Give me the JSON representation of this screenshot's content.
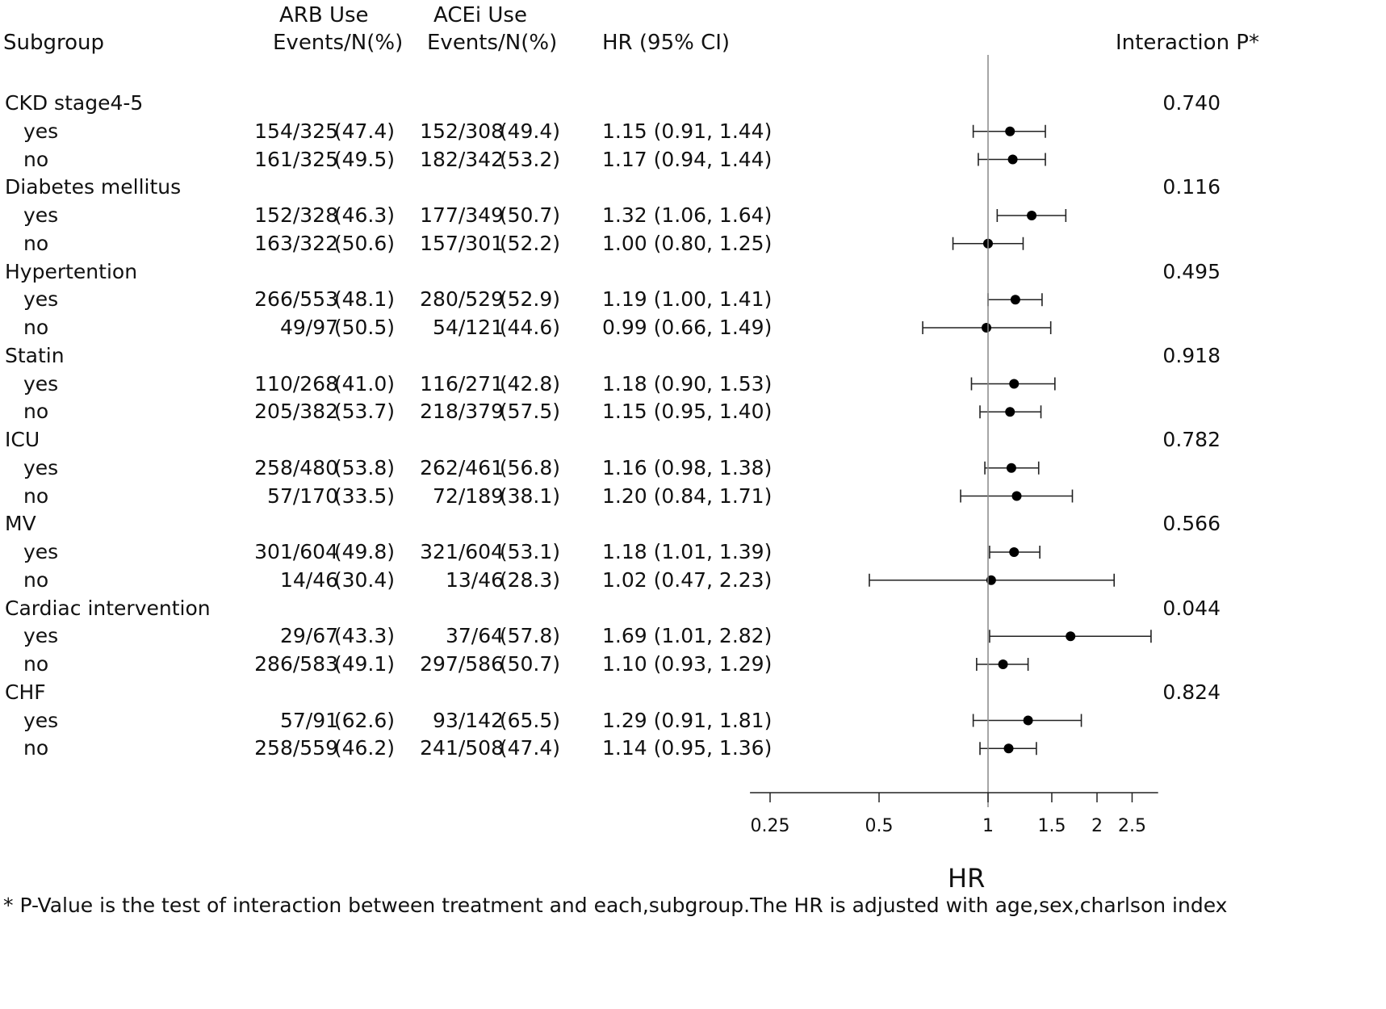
{
  "headers": {
    "subgroup": "Subgroup",
    "arb_line1": "ARB Use",
    "arb_line2": "Events/N(%)",
    "acei_line1": "ACEi Use",
    "acei_line2": "Events/N(%)",
    "hr": "HR (95% CI)",
    "interaction": "Interaction P*"
  },
  "groups": [
    {
      "label": "CKD stage4-5",
      "p": "0.740",
      "rows": [
        {
          "label": "yes",
          "arb_n": "154/325",
          "arb_pct": "(47.4)",
          "acei_n": "152/308",
          "acei_pct": "(49.4)",
          "hr_text": "1.15 (0.91, 1.44)",
          "hr": 1.15,
          "lo": 0.91,
          "hi": 1.44
        },
        {
          "label": "no",
          "arb_n": "161/325",
          "arb_pct": "(49.5)",
          "acei_n": "182/342",
          "acei_pct": "(53.2)",
          "hr_text": "1.17 (0.94, 1.44)",
          "hr": 1.17,
          "lo": 0.94,
          "hi": 1.44
        }
      ]
    },
    {
      "label": "Diabetes mellitus",
      "p": "0.116",
      "rows": [
        {
          "label": "yes",
          "arb_n": "152/328",
          "arb_pct": "(46.3)",
          "acei_n": "177/349",
          "acei_pct": "(50.7)",
          "hr_text": "1.32 (1.06, 1.64)",
          "hr": 1.32,
          "lo": 1.06,
          "hi": 1.64
        },
        {
          "label": "no",
          "arb_n": "163/322",
          "arb_pct": "(50.6)",
          "acei_n": "157/301",
          "acei_pct": "(52.2)",
          "hr_text": "1.00 (0.80, 1.25)",
          "hr": 1.0,
          "lo": 0.8,
          "hi": 1.25
        }
      ]
    },
    {
      "label": "Hypertention",
      "p": "0.495",
      "rows": [
        {
          "label": "yes",
          "arb_n": "266/553",
          "arb_pct": "(48.1)",
          "acei_n": "280/529",
          "acei_pct": "(52.9)",
          "hr_text": "1.19 (1.00, 1.41)",
          "hr": 1.19,
          "lo": 1.0,
          "hi": 1.41
        },
        {
          "label": "no",
          "arb_n": "49/97",
          "arb_pct": "(50.5)",
          "acei_n": "54/121",
          "acei_pct": "(44.6)",
          "hr_text": "0.99 (0.66, 1.49)",
          "hr": 0.99,
          "lo": 0.66,
          "hi": 1.49
        }
      ]
    },
    {
      "label": "Statin",
      "p": "0.918",
      "rows": [
        {
          "label": "yes",
          "arb_n": "110/268",
          "arb_pct": "(41.0)",
          "acei_n": "116/271",
          "acei_pct": "(42.8)",
          "hr_text": "1.18 (0.90, 1.53)",
          "hr": 1.18,
          "lo": 0.9,
          "hi": 1.53
        },
        {
          "label": "no",
          "arb_n": "205/382",
          "arb_pct": "(53.7)",
          "acei_n": "218/379",
          "acei_pct": "(57.5)",
          "hr_text": "1.15 (0.95, 1.40)",
          "hr": 1.15,
          "lo": 0.95,
          "hi": 1.4
        }
      ]
    },
    {
      "label": "ICU",
      "p": "0.782",
      "rows": [
        {
          "label": "yes",
          "arb_n": "258/480",
          "arb_pct": "(53.8)",
          "acei_n": "262/461",
          "acei_pct": "(56.8)",
          "hr_text": "1.16 (0.98, 1.38)",
          "hr": 1.16,
          "lo": 0.98,
          "hi": 1.38
        },
        {
          "label": "no",
          "arb_n": "57/170",
          "arb_pct": "(33.5)",
          "acei_n": "72/189",
          "acei_pct": "(38.1)",
          "hr_text": "1.20 (0.84, 1.71)",
          "hr": 1.2,
          "lo": 0.84,
          "hi": 1.71
        }
      ]
    },
    {
      "label": "MV",
      "p": "0.566",
      "rows": [
        {
          "label": "yes",
          "arb_n": "301/604",
          "arb_pct": "(49.8)",
          "acei_n": "321/604",
          "acei_pct": "(53.1)",
          "hr_text": "1.18 (1.01, 1.39)",
          "hr": 1.18,
          "lo": 1.01,
          "hi": 1.39
        },
        {
          "label": "no",
          "arb_n": "14/46",
          "arb_pct": "(30.4)",
          "acei_n": "13/46",
          "acei_pct": "(28.3)",
          "hr_text": "1.02 (0.47, 2.23)",
          "hr": 1.02,
          "lo": 0.47,
          "hi": 2.23
        }
      ]
    },
    {
      "label": "Cardiac intervention",
      "p": "0.044",
      "rows": [
        {
          "label": "yes",
          "arb_n": "29/67",
          "arb_pct": "(43.3)",
          "acei_n": "37/64",
          "acei_pct": "(57.8)",
          "hr_text": "1.69 (1.01, 2.82)",
          "hr": 1.69,
          "lo": 1.01,
          "hi": 2.82
        },
        {
          "label": "no",
          "arb_n": "286/583",
          "arb_pct": "(49.1)",
          "acei_n": "297/586",
          "acei_pct": "(50.7)",
          "hr_text": "1.10 (0.93, 1.29)",
          "hr": 1.1,
          "lo": 0.93,
          "hi": 1.29
        }
      ]
    },
    {
      "label": "CHF",
      "p": "0.824",
      "rows": [
        {
          "label": "yes",
          "arb_n": "57/91",
          "arb_pct": "(62.6)",
          "acei_n": "93/142",
          "acei_pct": "(65.5)",
          "hr_text": "1.29 (0.91, 1.81)",
          "hr": 1.29,
          "lo": 0.91,
          "hi": 1.81
        },
        {
          "label": "no",
          "arb_n": "258/559",
          "arb_pct": "(46.2)",
          "acei_n": "241/508",
          "acei_pct": "(47.4)",
          "hr_text": "1.14 (0.95, 1.36)",
          "hr": 1.14,
          "lo": 0.95,
          "hi": 1.36
        }
      ]
    }
  ],
  "chart_data": {
    "type": "forest",
    "xlabel": "HR",
    "x_scale": "log",
    "reference_value": 1,
    "xlim": [
      0.22,
      2.95
    ],
    "ticks": [
      0.25,
      0.5,
      1,
      1.5,
      2,
      2.5
    ],
    "tick_labels": [
      "0.25",
      "0.5",
      "1",
      "1.5",
      "2",
      "2.5"
    ]
  },
  "footnote": "* P-Value is the test of interaction between treatment and each,subgroup.The HR is adjusted with age,sex,charlson index"
}
